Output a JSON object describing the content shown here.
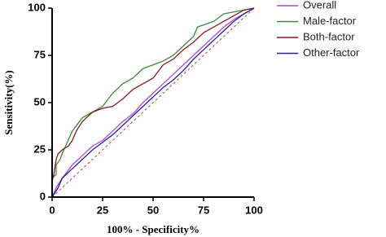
{
  "chart_data": {
    "type": "line",
    "x_label": "100% - Specificity%",
    "y_label": "Sensitivity(%)",
    "xlim": [
      0,
      100
    ],
    "ylim": [
      0,
      100
    ],
    "xticks": [
      0,
      25,
      50,
      75,
      100
    ],
    "yticks": [
      0,
      25,
      50,
      75,
      100
    ],
    "legend": "right",
    "series": [
      {
        "name": "Overall",
        "color": "#b040e0",
        "x": [
          0,
          2,
          5,
          10,
          15,
          20,
          25,
          30,
          35,
          40,
          45,
          50,
          55,
          60,
          65,
          70,
          75,
          80,
          85,
          90,
          95,
          100
        ],
        "values": [
          0,
          5,
          10,
          17,
          22,
          27,
          30,
          35,
          40,
          44,
          50,
          55,
          60,
          65,
          70,
          75,
          80,
          85,
          90,
          94,
          97,
          100
        ]
      },
      {
        "name": "Male-factor",
        "color": "#3a8a3a",
        "x": [
          0,
          0,
          2,
          2,
          4,
          5,
          10,
          15,
          20,
          25,
          30,
          35,
          40,
          45,
          50,
          55,
          60,
          65,
          70,
          72,
          80,
          85,
          90,
          100
        ],
        "values": [
          0,
          10,
          12,
          17,
          20,
          23,
          35,
          42,
          45,
          48,
          55,
          60,
          63,
          68,
          70,
          72,
          75,
          80,
          85,
          90,
          93,
          97,
          98,
          100
        ]
      },
      {
        "name": "Both-factor",
        "color": "#8b1a1a",
        "x": [
          0,
          0,
          1,
          2,
          3,
          5,
          8,
          10,
          12,
          15,
          18,
          20,
          25,
          30,
          35,
          40,
          45,
          50,
          55,
          60,
          65,
          70,
          75,
          80,
          85,
          90,
          95,
          100
        ],
        "values": [
          0,
          8,
          13,
          20,
          23,
          25,
          27,
          30,
          35,
          40,
          43,
          45,
          47,
          48,
          52,
          57,
          60,
          63,
          70,
          73,
          78,
          82,
          87,
          90,
          93,
          96,
          99,
          100
        ]
      },
      {
        "name": "Other-factor",
        "color": "#2020a0",
        "x": [
          0,
          3,
          5,
          10,
          15,
          20,
          25,
          30,
          35,
          40,
          45,
          50,
          55,
          60,
          65,
          70,
          75,
          80,
          85,
          90,
          95,
          100
        ],
        "values": [
          0,
          5,
          10,
          15,
          20,
          25,
          29,
          33,
          38,
          43,
          48,
          53,
          58,
          62,
          67,
          73,
          78,
          83,
          88,
          93,
          97,
          100
        ]
      }
    ]
  }
}
